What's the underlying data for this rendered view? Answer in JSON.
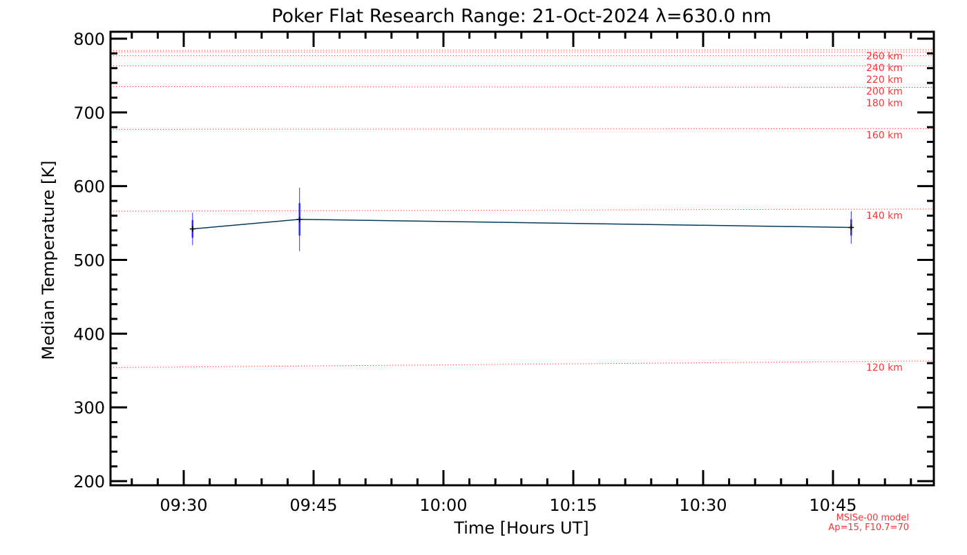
{
  "chart_data": {
    "type": "line",
    "title": "Poker Flat Research Range: 21-Oct-2024 λ=630.0 nm",
    "xlabel": "Time [Hours UT]",
    "ylabel": "Median Temperature [K]",
    "xlim_hours": [
      9.358,
      10.944
    ],
    "ylim": [
      200,
      800
    ],
    "x_ticks": [
      {
        "hours": 9.5,
        "label": "09:30"
      },
      {
        "hours": 9.75,
        "label": "09:45"
      },
      {
        "hours": 10.0,
        "label": "10:00"
      },
      {
        "hours": 10.25,
        "label": "10:15"
      },
      {
        "hours": 10.5,
        "label": "10:30"
      },
      {
        "hours": 10.75,
        "label": "10:45"
      }
    ],
    "y_ticks": [
      "200",
      "300",
      "400",
      "500",
      "600",
      "700",
      "800"
    ],
    "series": [
      {
        "name": "Median Temperature",
        "color": "#003a5c",
        "points": [
          {
            "hours": 9.517,
            "T": 542,
            "err_inner": 12,
            "err_outer": 22
          },
          {
            "hours": 9.723,
            "T": 555,
            "err_inner": 22,
            "err_outer": 43
          },
          {
            "hours": 10.785,
            "T": 544,
            "err_inner": 11,
            "err_outer": 22
          }
        ]
      }
    ],
    "model_lines": [
      {
        "label": "120 km",
        "T_start": 354,
        "T_end": 363
      },
      {
        "label": "140 km",
        "T_start": 566,
        "T_end": 569
      },
      {
        "label": "160 km",
        "T_start": 677,
        "T_end": 678
      },
      {
        "label": "180 km",
        "T_start": 735,
        "T_end": 734
      },
      {
        "label": "200 km",
        "T_start": 763,
        "T_end": 763
      },
      {
        "label": "220 km",
        "T_start": 777,
        "T_end": 777
      },
      {
        "label": "240 km",
        "T_start": 782,
        "T_end": 782
      },
      {
        "label": "260 km",
        "T_start": 784,
        "T_end": 785
      }
    ],
    "model_note": [
      "MSISe-00 model",
      "Ap=15, F10.7=70"
    ],
    "colors": {
      "model": "#ff3030",
      "error": "#2a2aff",
      "axes": "#000000"
    }
  }
}
